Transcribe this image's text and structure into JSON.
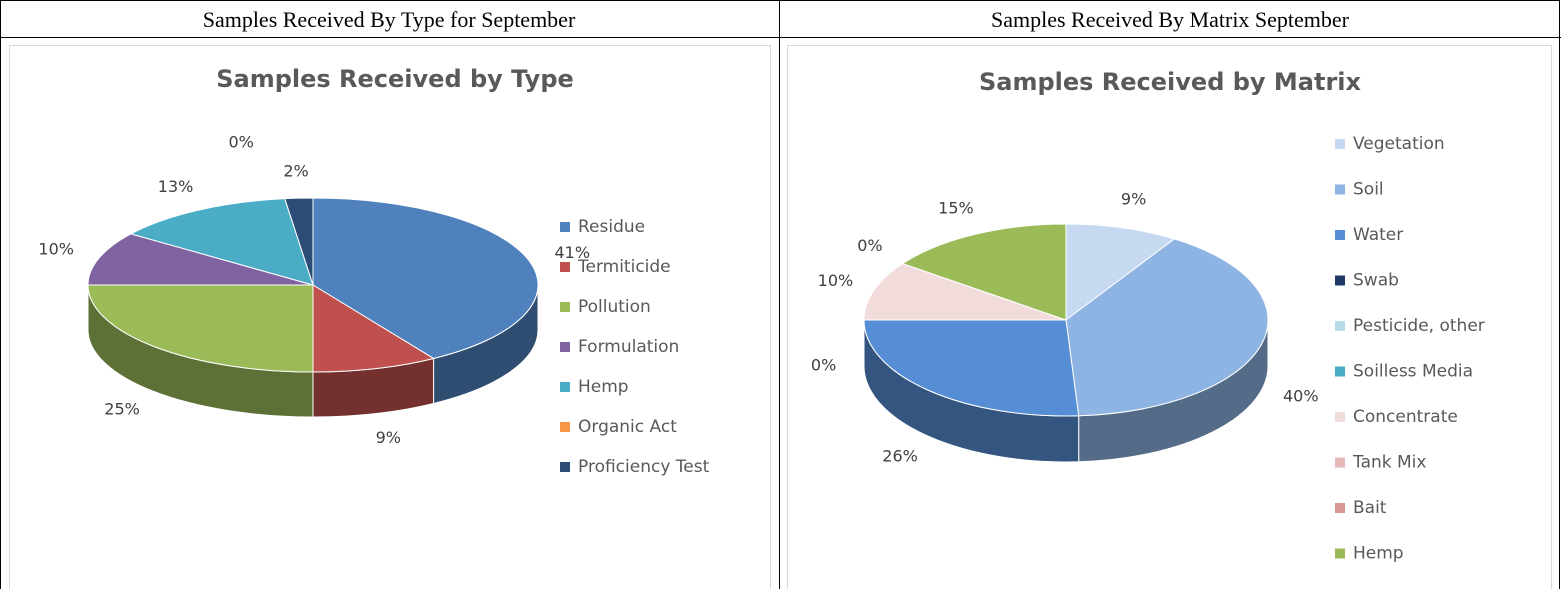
{
  "table": {
    "headers": [
      "Samples Received By Type for September",
      "Samples Received By Matrix September"
    ]
  },
  "chart_data": [
    {
      "type": "pie3d",
      "title": "Samples Received by Type",
      "categories": [
        "Residue",
        "Termiticide",
        "Pollution",
        "Formulation",
        "Hemp",
        "Organic Act",
        "Proficiency Test"
      ],
      "values": [
        41,
        9,
        25,
        10,
        13,
        0,
        2
      ],
      "value_labels": [
        "41%",
        "9%",
        "25%",
        "10%",
        "13%",
        "0%",
        "2%"
      ],
      "colors": [
        "#4f81bd",
        "#c0504d",
        "#9bbb59",
        "#8064a2",
        "#4bacc6",
        "#f79646",
        "#2c4d75"
      ],
      "legend": "right"
    },
    {
      "type": "pie3d",
      "title": "Samples Received by Matrix",
      "categories": [
        "Vegetation",
        "Soil",
        "Water",
        "Swab",
        "Pesticide, other",
        "Soilless Media",
        "Concentrate",
        "Tank Mix",
        "Bait",
        "Hemp"
      ],
      "values": [
        9,
        40,
        26,
        0,
        0,
        0,
        10,
        0,
        0,
        15
      ],
      "value_labels": [
        "9%",
        "40%",
        "26%",
        "0%",
        null,
        null,
        "10%",
        "0%",
        null,
        "15%"
      ],
      "colors": [
        "#c6d9f1",
        "#8eb4e3",
        "#558ed5",
        "#1f3864",
        "#b7dee8",
        "#4bacc6",
        "#f2dcdb",
        "#e6b9b8",
        "#d99694",
        "#9bbb59"
      ],
      "legend": "right"
    }
  ]
}
